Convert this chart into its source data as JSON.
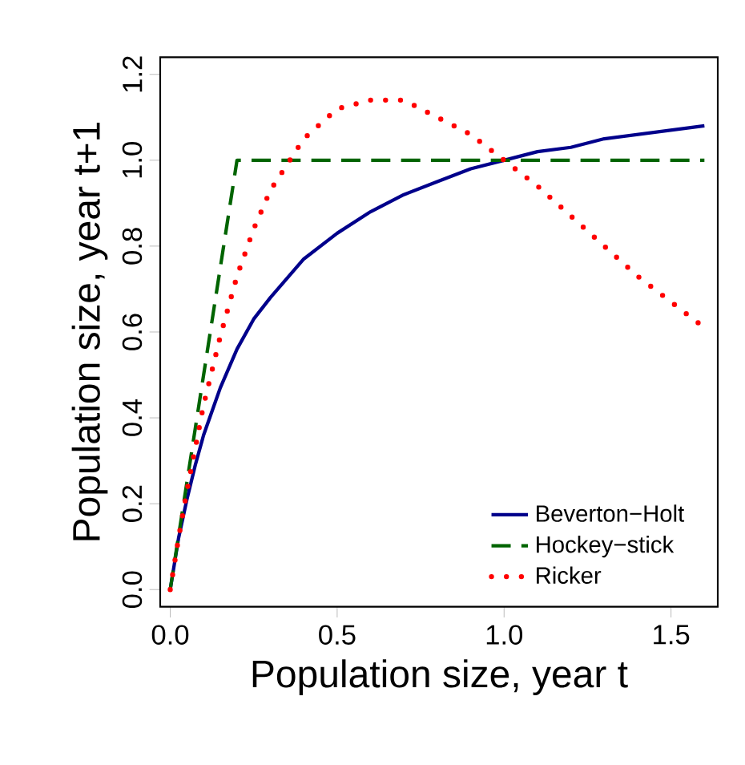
{
  "chart_data": {
    "type": "line",
    "xlabel": "Population size, year t",
    "ylabel": "Population size, year t+1",
    "xlim": [
      -0.03,
      1.64
    ],
    "ylim": [
      -0.04,
      1.24
    ],
    "xticks": [
      {
        "value": 0,
        "label": "0.0"
      },
      {
        "value": 0.5,
        "label": "0.5"
      },
      {
        "value": 1,
        "label": "1.0"
      },
      {
        "value": 1.5,
        "label": "1.5"
      }
    ],
    "yticks": [
      {
        "value": 0,
        "label": "0.0"
      },
      {
        "value": 0.2,
        "label": "0.2"
      },
      {
        "value": 0.4,
        "label": "0.4"
      },
      {
        "value": 0.6,
        "label": "0.6"
      },
      {
        "value": 0.8,
        "label": "0.8"
      },
      {
        "value": 1,
        "label": "1.0"
      },
      {
        "value": 1.2,
        "label": "1.2"
      }
    ],
    "grid": false,
    "legend": "bottom right",
    "marker": "none",
    "series": [
      {
        "name": "Beverton−Holt",
        "color": "#00008b",
        "line_style": "solid",
        "x": [
          0,
          0.025,
          0.05,
          0.075,
          0.1,
          0.15,
          0.2,
          0.25,
          0.3,
          0.4,
          0.5,
          0.6,
          0.7,
          0.8,
          0.9,
          1.0,
          1.1,
          1.2,
          1.3,
          1.4,
          1.5,
          1.6
        ],
        "values": [
          0,
          0.12,
          0.21,
          0.29,
          0.36,
          0.47,
          0.56,
          0.63,
          0.68,
          0.77,
          0.83,
          0.88,
          0.92,
          0.95,
          0.98,
          1.0,
          1.02,
          1.03,
          1.05,
          1.06,
          1.07,
          1.08
        ]
      },
      {
        "name": "Hockey−stick",
        "color": "#006400",
        "line_style": "dashed",
        "x": [
          0,
          0.2,
          1.6
        ],
        "values": [
          0,
          1.0,
          1.0
        ]
      },
      {
        "name": "Ricker",
        "color": "#ff0000",
        "line_style": "dotted",
        "x": [
          0,
          0.025,
          0.05,
          0.075,
          0.1,
          0.15,
          0.2,
          0.25,
          0.3,
          0.4,
          0.5,
          0.6,
          0.7,
          0.8,
          0.9,
          1.0,
          1.1,
          1.2,
          1.3,
          1.4,
          1.5,
          1.6
        ],
        "values": [
          0,
          0.12,
          0.23,
          0.33,
          0.43,
          0.59,
          0.73,
          0.84,
          0.93,
          1.05,
          1.12,
          1.14,
          1.14,
          1.1,
          1.06,
          1.0,
          0.94,
          0.87,
          0.8,
          0.73,
          0.67,
          0.61
        ]
      }
    ]
  }
}
